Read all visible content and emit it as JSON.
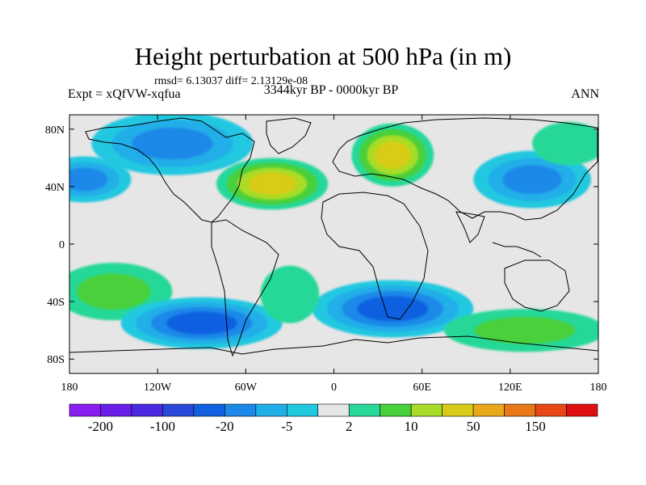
{
  "title": "Height perturbation at 500 hPa (in m)",
  "stats": "rmsd= 6.13037 diff= 2.13129e-08",
  "left_label": "Expt = xQfVW-xqfua",
  "center_label": "3344kyr BP - 0000kyr BP",
  "right_label": "ANN",
  "chart_data": {
    "type": "heatmap",
    "title": "Height perturbation at 500 hPa (in m)",
    "subtitle": "3344kyr BP - 0000kyr BP",
    "x_ticks": [
      "180",
      "120W",
      "60W",
      "0",
      "60E",
      "120E",
      "180"
    ],
    "y_ticks": [
      "80N",
      "40N",
      "0",
      "40S",
      "80S"
    ],
    "xlim": [
      -180,
      180
    ],
    "ylim": [
      -90,
      90
    ],
    "colorbar": {
      "labels": [
        "-200",
        "-100",
        "-20",
        "-5",
        "2",
        "10",
        "50",
        "150"
      ],
      "colors": [
        "#8a1ef0",
        "#6a1ee8",
        "#4a28e0",
        "#2848d8",
        "#1060e0",
        "#1c88e8",
        "#20aee8",
        "#20c8e0",
        "#e6e6e6",
        "#28d898",
        "#48d03a",
        "#a8dc28",
        "#d8cc18",
        "#e8a818",
        "#e87818",
        "#e84818",
        "#e01010"
      ]
    },
    "anomalies": [
      {
        "lon": 40,
        "lat": 62,
        "rx": 28,
        "ry": 22,
        "value": 40
      },
      {
        "lon": -42,
        "lat": 42,
        "rx": 38,
        "ry": 18,
        "value": 35
      },
      {
        "lon": -110,
        "lat": 70,
        "rx": 55,
        "ry": 22,
        "value": -12
      },
      {
        "lon": -170,
        "lat": 45,
        "rx": 32,
        "ry": 16,
        "value": -12
      },
      {
        "lon": 135,
        "lat": 45,
        "rx": 40,
        "ry": 20,
        "value": -10
      },
      {
        "lon": 160,
        "lat": 70,
        "rx": 25,
        "ry": 15,
        "value": 8
      },
      {
        "lon": -150,
        "lat": -33,
        "rx": 40,
        "ry": 20,
        "value": 18
      },
      {
        "lon": -90,
        "lat": -55,
        "rx": 55,
        "ry": 18,
        "value": -15
      },
      {
        "lon": 40,
        "lat": -45,
        "rx": 55,
        "ry": 20,
        "value": -15
      },
      {
        "lon": 130,
        "lat": -60,
        "rx": 55,
        "ry": 15,
        "value": 15
      },
      {
        "lon": -30,
        "lat": -35,
        "rx": 20,
        "ry": 20,
        "value": 4
      }
    ]
  }
}
